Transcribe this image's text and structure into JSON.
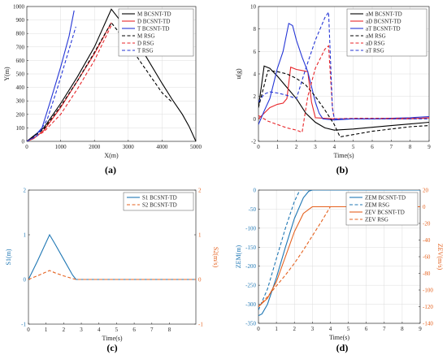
{
  "captions": [
    "(a)",
    "(b)",
    "(c)",
    "(d)"
  ],
  "chart_data": [
    {
      "type": "line",
      "xlabel": "X(m)",
      "ylabel": "Y(m)",
      "xlim": [
        0,
        5000
      ],
      "ylim": [
        0,
        1000
      ],
      "xticks": [
        0,
        1000,
        2000,
        3000,
        4000,
        5000
      ],
      "yticks": [
        0,
        100,
        200,
        300,
        400,
        500,
        600,
        700,
        800,
        900,
        1000
      ],
      "grid": true,
      "legend": "top-right",
      "series": [
        {
          "name": "M  BCSNT-TD",
          "color": "#000000",
          "dash": false,
          "x": [
            0,
            500,
            1000,
            1500,
            2000,
            2500,
            3000,
            3500,
            4000,
            4300,
            4600,
            4800,
            5000
          ],
          "y": [
            0,
            100,
            280,
            480,
            700,
            980,
            820,
            640,
            430,
            310,
            200,
            110,
            0
          ]
        },
        {
          "name": "D  BCSNT-TD",
          "color": "#e8262a",
          "dash": false,
          "x": [
            0,
            200,
            500,
            1000,
            1500,
            2000,
            2500
          ],
          "y": [
            0,
            20,
            80,
            250,
            450,
            650,
            880
          ]
        },
        {
          "name": "T  BCSNT-TD",
          "color": "#2536d6",
          "dash": false,
          "x": [
            0,
            200,
            450,
            700,
            1000,
            1250,
            1400
          ],
          "y": [
            0,
            30,
            100,
            300,
            550,
            780,
            970
          ]
        },
        {
          "name": "M  RSG",
          "color": "#000000",
          "dash": true,
          "x": [
            0,
            500,
            1000,
            1500,
            2000,
            2500,
            3000,
            3500,
            4000,
            4300
          ],
          "y": [
            0,
            90,
            260,
            450,
            660,
            880,
            720,
            540,
            360,
            290
          ]
        },
        {
          "name": "D  RSG",
          "color": "#e8262a",
          "dash": true,
          "x": [
            0,
            500,
            1000,
            1500,
            2000,
            2500
          ],
          "y": [
            0,
            70,
            200,
            390,
            600,
            860
          ]
        },
        {
          "name": "T  RSG",
          "color": "#2536d6",
          "dash": true,
          "x": [
            0,
            300,
            600,
            900,
            1200,
            1450
          ],
          "y": [
            0,
            40,
            160,
            390,
            640,
            850
          ]
        }
      ]
    },
    {
      "type": "line",
      "xlabel": "Time(s)",
      "ylabel": "u(g)",
      "xlim": [
        0,
        9
      ],
      "ylim": [
        -2,
        10
      ],
      "xticks": [
        0,
        1,
        2,
        3,
        4,
        5,
        6,
        7,
        8,
        9
      ],
      "yticks": [
        -2,
        0,
        2,
        4,
        6,
        8,
        10
      ],
      "grid": true,
      "legend": "top-right",
      "series": [
        {
          "name": "aM  BCSNT-TD",
          "color": "#000000",
          "dash": false,
          "x": [
            0,
            0.3,
            0.6,
            1,
            1.5,
            2,
            2.5,
            3,
            3.5,
            4,
            5,
            6,
            7,
            8,
            9
          ],
          "y": [
            1,
            4.7,
            4.5,
            3.8,
            2.8,
            1.8,
            0.5,
            -0.3,
            -0.8,
            -1,
            -0.9,
            -0.75,
            -0.6,
            -0.45,
            -0.3
          ]
        },
        {
          "name": "aD  BCSNT-TD",
          "color": "#e8262a",
          "dash": false,
          "x": [
            0,
            0.3,
            0.6,
            1,
            1.3,
            1.5,
            1.7,
            2,
            2.3,
            2.6,
            2.8,
            3,
            4,
            5,
            6,
            7,
            8,
            9
          ],
          "y": [
            0,
            0.5,
            1,
            1.3,
            1.4,
            1.8,
            4.6,
            4.4,
            4.3,
            4.2,
            1.5,
            0.1,
            0,
            0,
            0,
            0,
            0,
            0.1
          ]
        },
        {
          "name": "aT  BCSNT-TD",
          "color": "#2536d6",
          "dash": false,
          "x": [
            0,
            0.3,
            0.6,
            1,
            1.3,
            1.6,
            1.8,
            2,
            2.3,
            2.6,
            3,
            3.2,
            3.4,
            4,
            5,
            6,
            7,
            8,
            9
          ],
          "y": [
            -0.5,
            0.7,
            1.8,
            4.5,
            6,
            8.5,
            8.3,
            7,
            5.5,
            4.2,
            1.5,
            0.5,
            0,
            -0.1,
            0,
            0,
            0.05,
            0.1,
            0.2
          ]
        },
        {
          "name": "aM  RSG",
          "color": "#000000",
          "dash": true,
          "x": [
            0,
            0.5,
            1,
            1.5,
            2,
            2.5,
            3,
            3.5,
            4,
            4.3,
            5,
            6,
            7,
            8,
            9
          ],
          "y": [
            1,
            4.3,
            4.2,
            4,
            3.6,
            3,
            2,
            0.8,
            -0.5,
            -1.6,
            -1.4,
            -1.1,
            -0.9,
            -0.7,
            -0.6
          ]
        },
        {
          "name": "aD  RSG",
          "color": "#e8262a",
          "dash": true,
          "x": [
            0,
            0.5,
            1,
            1.5,
            2,
            2.3,
            2.6,
            3,
            3.5,
            3.7,
            3.9,
            4,
            5,
            6,
            7,
            8,
            9
          ],
          "y": [
            0.3,
            -0.2,
            -0.5,
            -0.8,
            -1,
            -1.2,
            2,
            4.5,
            6.2,
            6.5,
            1,
            0,
            0.05,
            0.05,
            0.05,
            0.05,
            0.05
          ]
        },
        {
          "name": "aT  RSG",
          "color": "#2536d6",
          "dash": true,
          "x": [
            0,
            0.3,
            0.6,
            1,
            1.5,
            2,
            2.5,
            3,
            3.5,
            3.7,
            3.9,
            4,
            5,
            6,
            7,
            8,
            9
          ],
          "y": [
            1.5,
            2.2,
            2.4,
            2.3,
            2.1,
            1.8,
            4.5,
            7,
            9,
            9.5,
            1,
            0,
            0,
            0,
            0,
            0,
            0
          ]
        }
      ]
    },
    {
      "type": "line",
      "xlabel": "Time(s)",
      "ylabel": "S1(m)",
      "y2label": "S2(m/s)",
      "xlim": [
        0,
        9.5
      ],
      "ylim": [
        -1,
        2
      ],
      "y2lim": [
        -1,
        2
      ],
      "xticks": [
        0,
        1,
        2,
        3,
        4,
        5,
        6,
        7,
        8
      ],
      "yticks": [
        -1,
        0,
        1,
        2
      ],
      "y2ticks": [
        -1,
        0,
        1,
        2
      ],
      "grid": false,
      "legend": "top-right",
      "series": [
        {
          "name": "S1  BCSNT-TD",
          "color": "#1f77b4",
          "dash": false,
          "axis": "left",
          "x": [
            0,
            0.5,
            1.2,
            1.5,
            2,
            2.5,
            2.7,
            9.5
          ],
          "y": [
            0,
            0.4,
            1.0,
            0.8,
            0.45,
            0.1,
            0,
            0
          ]
        },
        {
          "name": "S2  BCSNT-TD",
          "color": "#e5621f",
          "dash": true,
          "axis": "right",
          "x": [
            0,
            0.5,
            1.2,
            1.5,
            2,
            2.5,
            2.7,
            9.5
          ],
          "y": [
            0,
            0.08,
            0.2,
            0.15,
            0.08,
            0.02,
            0,
            0
          ]
        }
      ]
    },
    {
      "type": "line",
      "xlabel": "Time(s)",
      "ylabel": "ZEM(m)",
      "y2label": "ZEV(m/s)",
      "xlim": [
        0,
        9
      ],
      "ylim": [
        -350,
        0
      ],
      "y2lim": [
        -140,
        20
      ],
      "xticks": [
        0,
        1,
        2,
        3,
        4,
        5,
        6,
        7,
        8,
        9
      ],
      "yticks": [
        -350,
        -300,
        -250,
        -200,
        -150,
        -100,
        -50,
        0
      ],
      "y2ticks": [
        -140,
        -120,
        -100,
        -80,
        -60,
        -40,
        -20,
        0,
        20
      ],
      "grid": true,
      "legend": "top-right",
      "series": [
        {
          "name": "ZEM  BCSNT-TD",
          "color": "#1f77b4",
          "dash": false,
          "axis": "left",
          "x": [
            0,
            0.2,
            0.5,
            1,
            1.5,
            2,
            2.5,
            2.8,
            3,
            9
          ],
          "y": [
            -330,
            -325,
            -300,
            -230,
            -150,
            -75,
            -20,
            -3,
            0,
            0
          ]
        },
        {
          "name": "ZEM  RSG",
          "color": "#1f77b4",
          "dash": true,
          "axis": "left",
          "x": [
            0,
            0.5,
            1,
            1.5,
            2,
            2.3,
            9
          ],
          "y": [
            -315,
            -260,
            -180,
            -100,
            -30,
            0,
            0
          ]
        },
        {
          "name": "ZEV  BCSNT-TD",
          "color": "#e5621f",
          "dash": false,
          "axis": "right",
          "x": [
            0,
            0.5,
            1,
            1.5,
            2,
            2.5,
            3,
            9
          ],
          "y": [
            -120,
            -110,
            -90,
            -60,
            -30,
            -8,
            0,
            0
          ]
        },
        {
          "name": "ZEV  RSG",
          "color": "#e5621f",
          "dash": true,
          "axis": "right",
          "x": [
            0,
            0.5,
            1,
            1.5,
            2,
            2.5,
            3,
            3.5,
            4,
            9
          ],
          "y": [
            -120,
            -108,
            -95,
            -82,
            -68,
            -52,
            -35,
            -18,
            0,
            0
          ]
        }
      ]
    }
  ]
}
